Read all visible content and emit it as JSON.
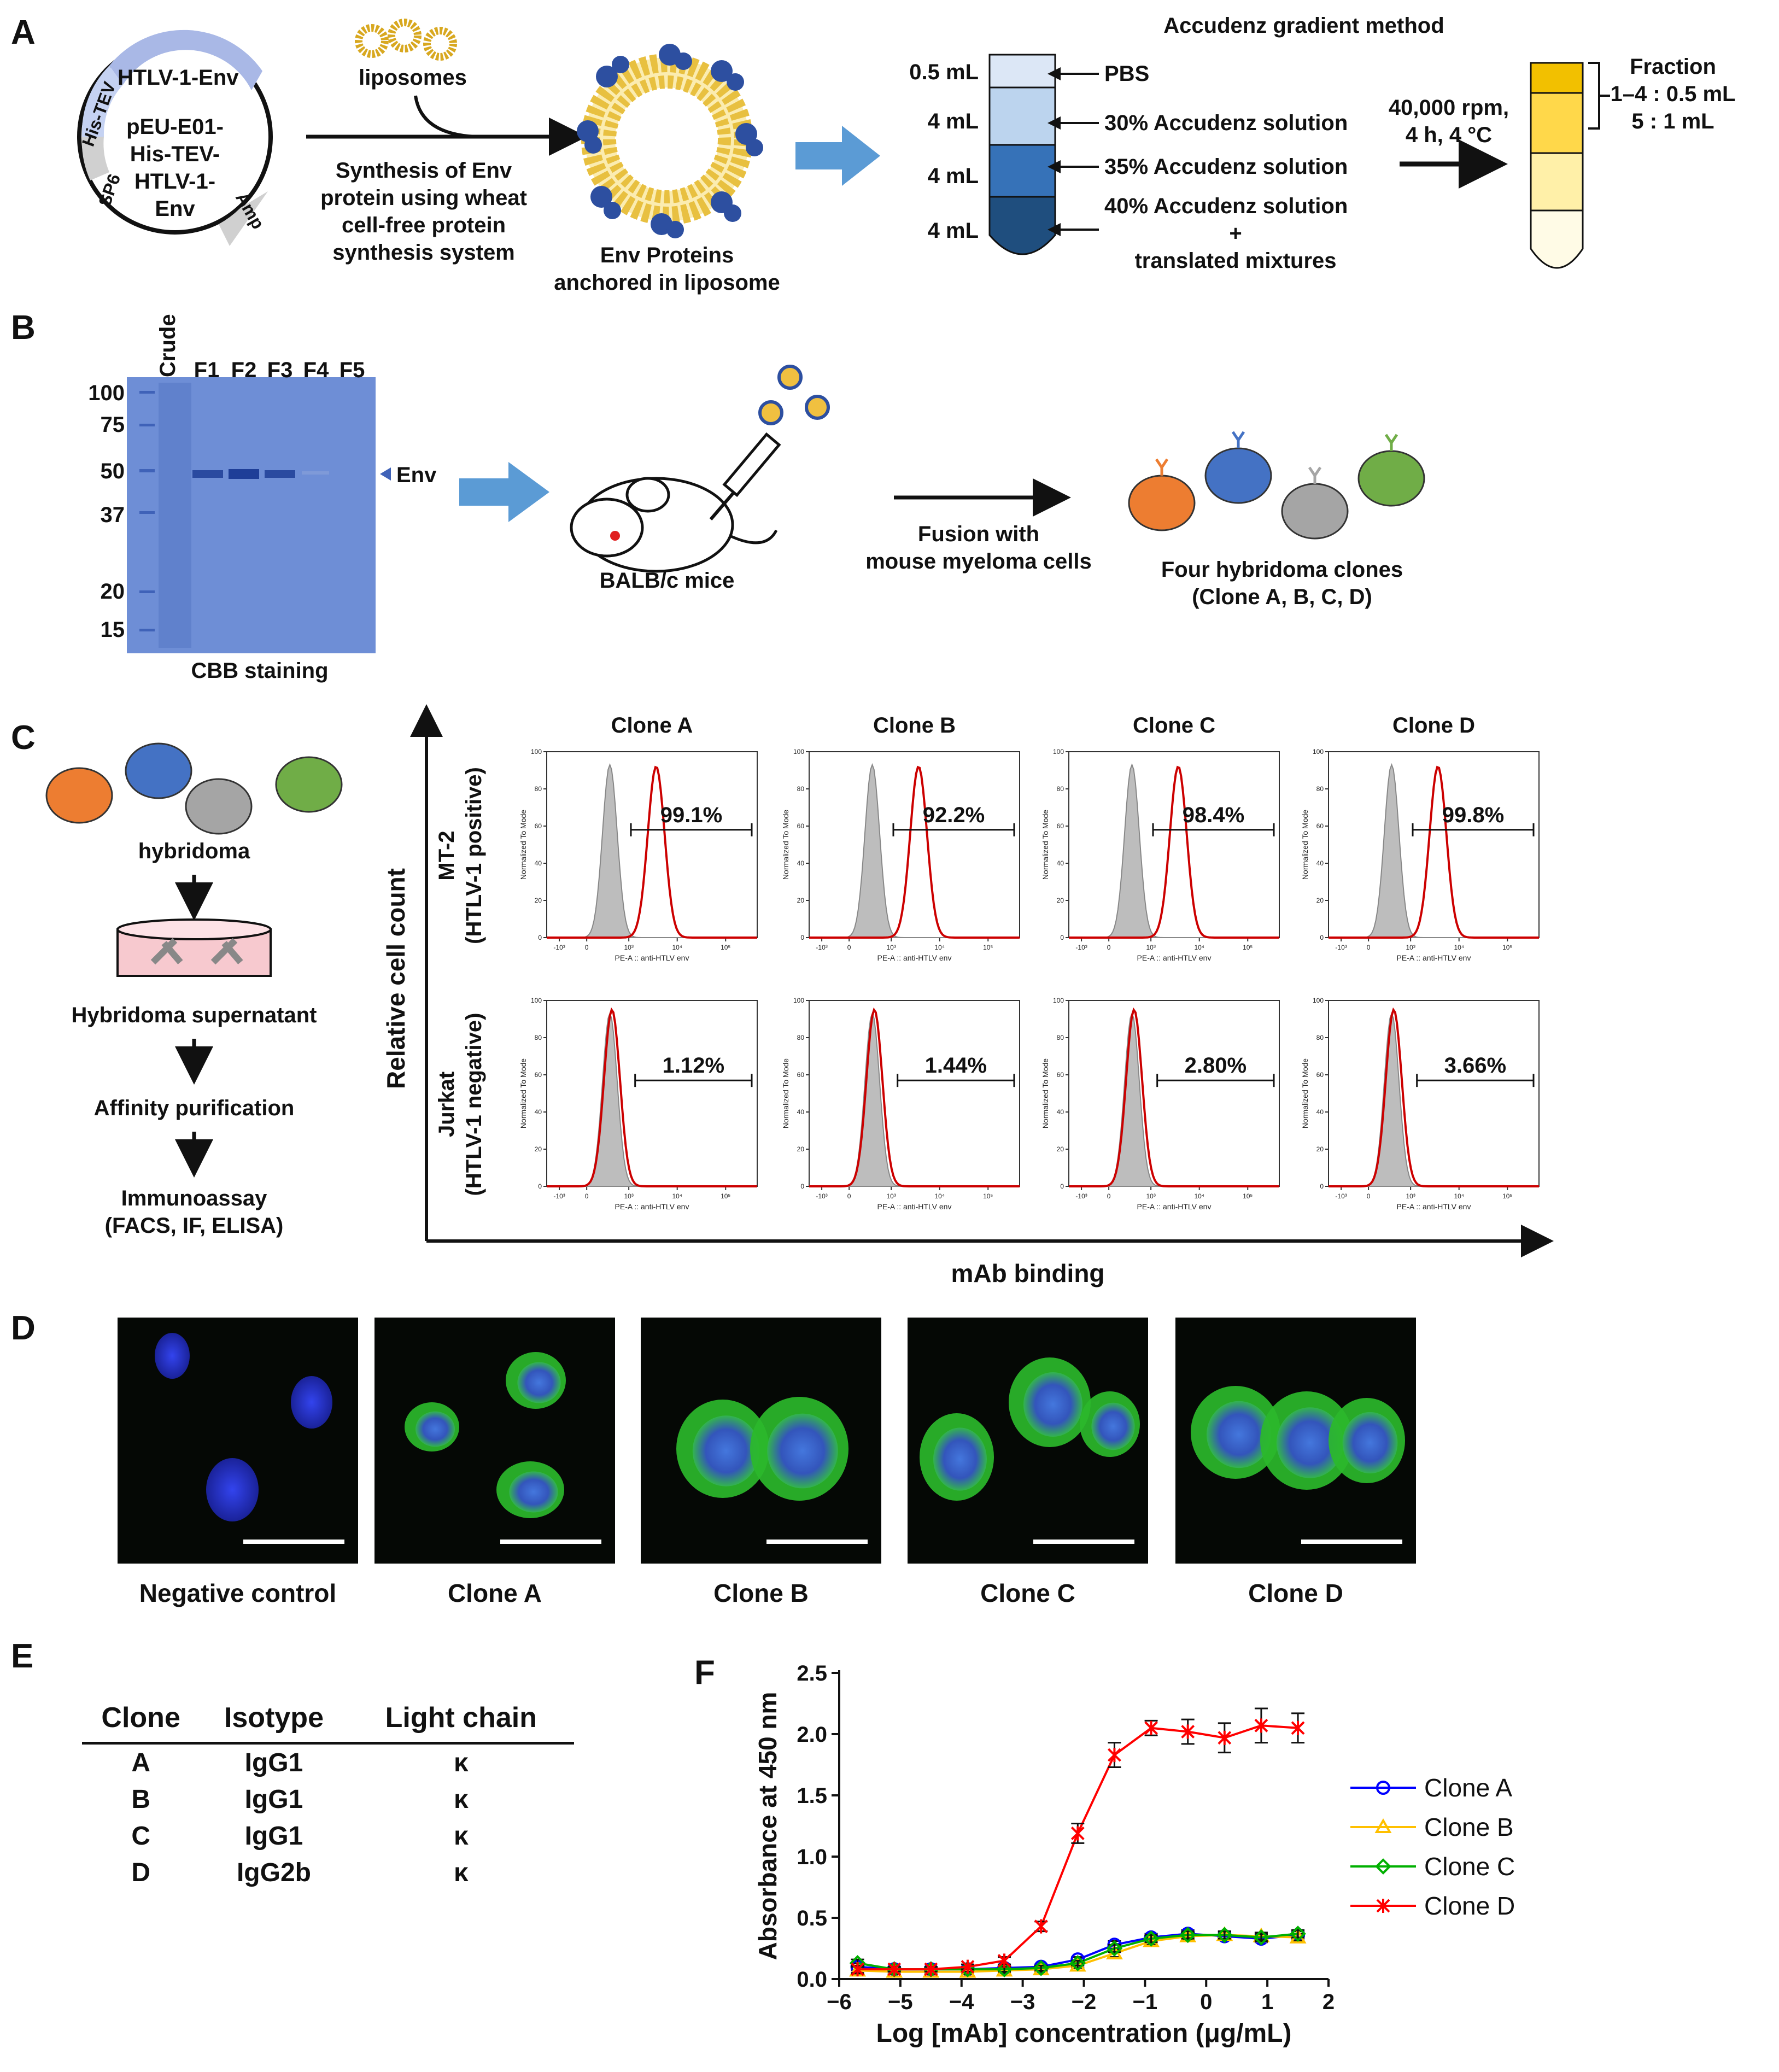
{
  "panel_labels": [
    "A",
    "B",
    "C",
    "D",
    "E",
    "F"
  ],
  "panel_a": {
    "plasmid": {
      "segments": [
        "HTLV-1-Env",
        "His-TEV",
        "SP6",
        "Amp"
      ],
      "name_lines": [
        "pEU-E01-",
        "His-TEV-",
        "HTLV-1-",
        "Env"
      ]
    },
    "liposomes_label": "liposomes",
    "synthesis_lines": [
      "Synthesis of Env",
      "protein using wheat",
      "cell-free protein",
      "synthesis system"
    ],
    "product_lines": [
      "Env Proteins",
      "anchored in liposome"
    ],
    "gradient_title": "Accudenz gradient method",
    "volumes": [
      "0.5 mL",
      "4 mL",
      "4 mL",
      "4 mL"
    ],
    "layers": [
      "PBS",
      "30% Accudenz solution",
      "35% Accudenz solution",
      "40% Accudenz solution",
      "+",
      "translated mixtures"
    ],
    "centrifuge_lines": [
      "40,000 rpm,",
      "4 h, 4 °C"
    ],
    "fraction_lines": [
      "Fraction",
      "1–4 : 0.5 mL",
      "5 : 1 mL"
    ]
  },
  "panel_b": {
    "lanes": [
      "Crude",
      "F1",
      "F2",
      "F3",
      "F4",
      "F5"
    ],
    "markers": [
      "100",
      "75",
      "50",
      "37",
      "20",
      "15"
    ],
    "band_label": "Env",
    "gel_caption": "CBB staining",
    "mice_label": "BALB/c mice",
    "fusion_lines": [
      "Fusion with",
      "mouse myeloma cells"
    ],
    "clones_lines": [
      "Four hybridoma clones",
      "(Clone A, B, C, D)"
    ]
  },
  "panel_c": {
    "workflow": [
      "hybridoma",
      "Hybridoma supernatant",
      "Affinity purification",
      "Immunoassay",
      "(FACS, IF, ELISA)"
    ],
    "y_axis": "Relative cell count",
    "x_axis": "mAb binding",
    "row1_lines": [
      "MT-2",
      "(HTLV-1 positive)"
    ],
    "row2_lines": [
      "Jurkat",
      "(HTLV-1 negative)"
    ],
    "columns": [
      "Clone A",
      "Clone B",
      "Clone C",
      "Clone D"
    ],
    "mt2_percent": [
      "99.1%",
      "92.2%",
      "98.4%",
      "99.8%"
    ],
    "jurkat_percent": [
      "1.12%",
      "1.44%",
      "2.80%",
      "3.66%"
    ],
    "hist_ylabel": "Normalized To Mode",
    "hist_xlabel": "PE-A :: anti-HTLV env",
    "hist_yticks": [
      "0",
      "20",
      "40",
      "60",
      "80",
      "100"
    ],
    "hist_xticks": [
      "-10³",
      "0",
      "10³",
      "10⁴",
      "10⁵"
    ]
  },
  "panel_d": {
    "captions": [
      "Negative control",
      "Clone A",
      "Clone B",
      "Clone C",
      "Clone D"
    ]
  },
  "panel_e": {
    "headers": [
      "Clone",
      "Isotype",
      "Light chain"
    ],
    "rows": [
      [
        "A",
        "IgG1",
        "κ"
      ],
      [
        "B",
        "IgG1",
        "κ"
      ],
      [
        "C",
        "IgG1",
        "κ"
      ],
      [
        "D",
        "IgG2b",
        "κ"
      ]
    ]
  },
  "colors": {
    "clone_a": "#0000ff",
    "clone_b": "#ffc000",
    "clone_c": "#00b000",
    "clone_d": "#ff0000",
    "fitc_green": "#33cc33",
    "dapi_blue": "#2233cc",
    "arrow_blue": "#5b9bd5"
  },
  "chart_data": {
    "type": "line",
    "title": "",
    "xlabel": "Log [mAb] concentration (μg/mL)",
    "ylabel": "Absorbance at 450 nm",
    "xlim": [
      -6,
      2
    ],
    "ylim": [
      0,
      2.5
    ],
    "xticks": [
      -6,
      -5,
      -4,
      -3,
      -2,
      -1,
      0,
      1,
      2
    ],
    "yticks": [
      0.0,
      0.5,
      1.0,
      1.5,
      2.0,
      2.5
    ],
    "ytick_labels": [
      "0.0",
      "0.5",
      "1.0",
      "1.5",
      "2.0",
      "2.5"
    ],
    "xtick_labels": [
      "−6",
      "−5",
      "−4",
      "−3",
      "−2",
      "−1",
      "0",
      "1",
      "2"
    ],
    "legend_position": "right",
    "x": [
      -5.7,
      -5.1,
      -4.5,
      -3.9,
      -3.3,
      -2.7,
      -2.1,
      -1.5,
      -0.9,
      -0.3,
      0.3,
      0.9,
      1.5
    ],
    "series": [
      {
        "name": "Clone A",
        "marker": "circle",
        "values": [
          0.1,
          0.08,
          0.08,
          0.08,
          0.09,
          0.1,
          0.16,
          0.28,
          0.34,
          0.37,
          0.35,
          0.33,
          0.36
        ],
        "err": [
          0.03,
          0.02,
          0.02,
          0.02,
          0.02,
          0.02,
          0.02,
          0.03,
          0.03,
          0.03,
          0.03,
          0.03,
          0.03
        ]
      },
      {
        "name": "Clone B",
        "marker": "triangle",
        "values": [
          0.07,
          0.06,
          0.06,
          0.06,
          0.07,
          0.08,
          0.11,
          0.21,
          0.31,
          0.35,
          0.36,
          0.35,
          0.34
        ],
        "err": [
          0.03,
          0.02,
          0.02,
          0.02,
          0.02,
          0.02,
          0.02,
          0.03,
          0.03,
          0.03,
          0.03,
          0.03,
          0.03
        ]
      },
      {
        "name": "Clone C",
        "marker": "diamond",
        "values": [
          0.13,
          0.08,
          0.08,
          0.08,
          0.08,
          0.09,
          0.13,
          0.25,
          0.33,
          0.36,
          0.36,
          0.34,
          0.37
        ],
        "err": [
          0.03,
          0.02,
          0.02,
          0.02,
          0.02,
          0.02,
          0.02,
          0.03,
          0.03,
          0.03,
          0.03,
          0.03,
          0.03
        ]
      },
      {
        "name": "Clone D",
        "marker": "star",
        "values": [
          0.08,
          0.08,
          0.08,
          0.1,
          0.15,
          0.43,
          1.19,
          1.83,
          2.05,
          2.02,
          1.97,
          2.07,
          2.05
        ],
        "err": [
          0.03,
          0.02,
          0.02,
          0.02,
          0.03,
          0.04,
          0.08,
          0.1,
          0.06,
          0.1,
          0.12,
          0.14,
          0.12
        ]
      }
    ]
  }
}
